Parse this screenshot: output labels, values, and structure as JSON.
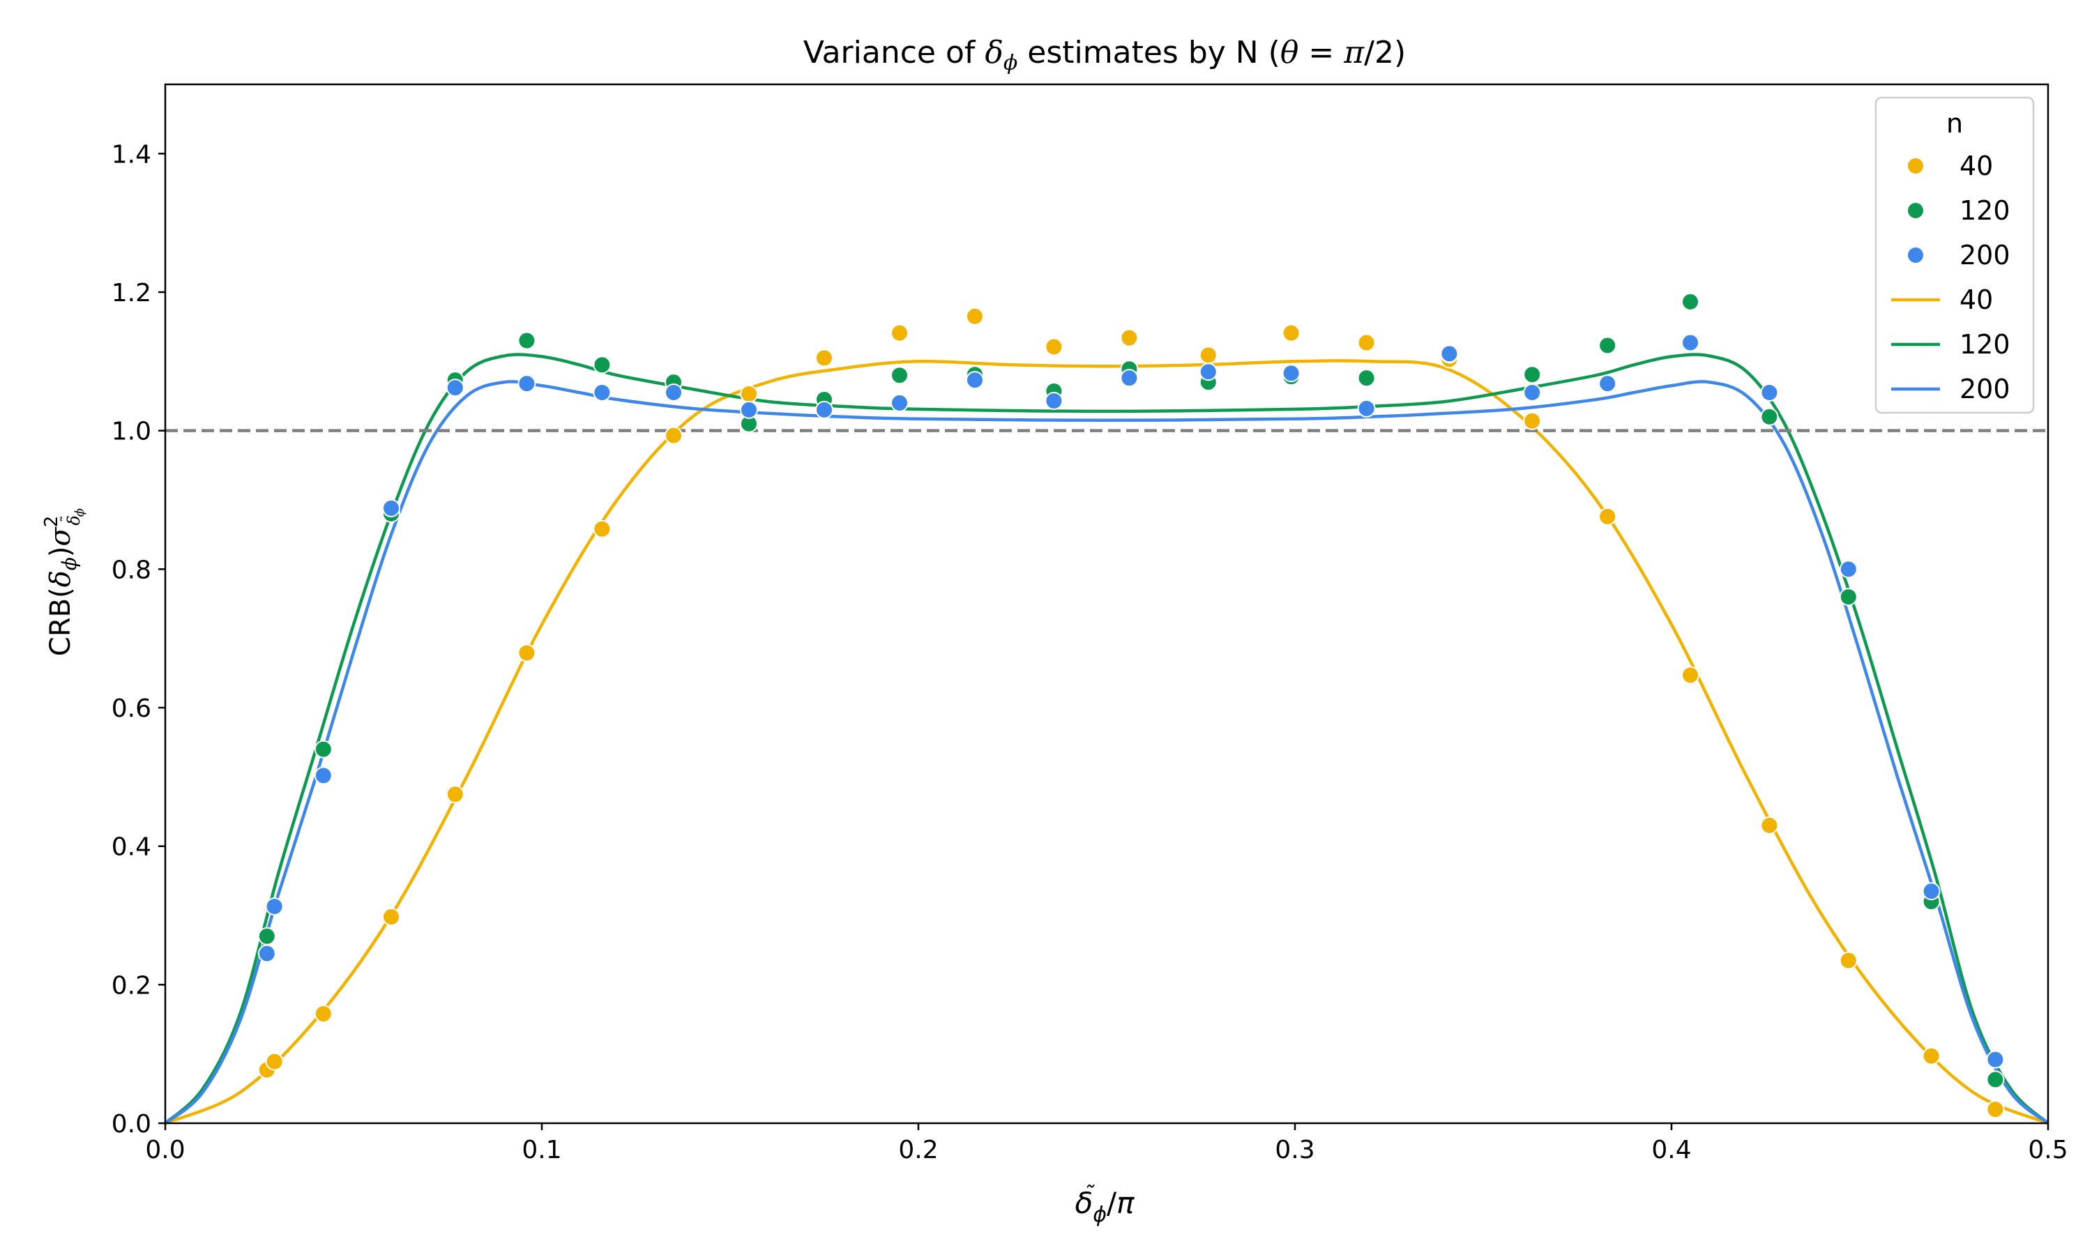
{
  "chart_data": {
    "type": "scatter",
    "title": "Variance of δ_ϕ estimates by N (θ = π/2)",
    "title_parts": {
      "pre": "Variance of ",
      "delta": "δ",
      "phi_sub": "ϕ",
      "mid": " estimates by N (",
      "theta": "θ",
      "eq": " = ",
      "pi": "π",
      "post": "/2)"
    },
    "xlabel_parts": {
      "delta": "δ",
      "tilde": "˜",
      "phi_sub": "ϕ",
      "div": "/",
      "pi": "π"
    },
    "ylabel_parts": {
      "crb": "CRB(",
      "delta": "δ",
      "phi_sub": "ϕ",
      "close": ")",
      "sigma": "σ",
      "sup": "2",
      "sub_delta": "δ",
      "sub_tilde": "˜",
      "sub_phi": "ϕ"
    },
    "xlim": [
      0.0,
      0.5
    ],
    "ylim": [
      0.0,
      1.5
    ],
    "xticks": [
      0.0,
      0.1,
      0.2,
      0.3,
      0.4,
      0.5
    ],
    "xtick_labels": [
      "0.0",
      "0.1",
      "0.2",
      "0.3",
      "0.4",
      "0.5"
    ],
    "yticks": [
      0.0,
      0.2,
      0.4,
      0.6,
      0.8,
      1.0,
      1.2,
      1.4
    ],
    "ytick_labels": [
      "0.0",
      "0.2",
      "0.4",
      "0.6",
      "0.8",
      "1.0",
      "1.2",
      "1.4"
    ],
    "grid": false,
    "reference_line": {
      "y": 1.0,
      "style": "dashed",
      "color": "#808080"
    },
    "legend": {
      "title": "n",
      "placement": "top-right",
      "entries": [
        {
          "label": "40",
          "kind": "marker",
          "color": "#f2b200"
        },
        {
          "label": "120",
          "kind": "marker",
          "color": "#0e9950"
        },
        {
          "label": "200",
          "kind": "marker",
          "color": "#3d86ea"
        },
        {
          "label": "40",
          "kind": "line",
          "color": "#f2b200"
        },
        {
          "label": "120",
          "kind": "line",
          "color": "#0e9950"
        },
        {
          "label": "200",
          "kind": "line",
          "color": "#3d86ea"
        }
      ]
    },
    "series": [
      {
        "name": "40",
        "color": "#f2b200",
        "points": [
          [
            0.027,
            0.077
          ],
          [
            0.029,
            0.089
          ],
          [
            0.042,
            0.158
          ],
          [
            0.06,
            0.298
          ],
          [
            0.077,
            0.475
          ],
          [
            0.096,
            0.679
          ],
          [
            0.116,
            0.858
          ],
          [
            0.135,
            0.993
          ],
          [
            0.155,
            1.053
          ],
          [
            0.175,
            1.105
          ],
          [
            0.195,
            1.141
          ],
          [
            0.215,
            1.165
          ],
          [
            0.236,
            1.121
          ],
          [
            0.256,
            1.134
          ],
          [
            0.277,
            1.109
          ],
          [
            0.299,
            1.141
          ],
          [
            0.319,
            1.127
          ],
          [
            0.341,
            1.103
          ],
          [
            0.363,
            1.014
          ],
          [
            0.383,
            0.876
          ],
          [
            0.405,
            0.647
          ],
          [
            0.426,
            0.43
          ],
          [
            0.447,
            0.235
          ],
          [
            0.469,
            0.097
          ],
          [
            0.486,
            0.02
          ]
        ],
        "curve": [
          [
            0.0,
            0.0
          ],
          [
            0.02,
            0.045
          ],
          [
            0.04,
            0.15
          ],
          [
            0.06,
            0.3
          ],
          [
            0.08,
            0.5
          ],
          [
            0.1,
            0.72
          ],
          [
            0.12,
            0.9
          ],
          [
            0.14,
            1.02
          ],
          [
            0.16,
            1.07
          ],
          [
            0.18,
            1.09
          ],
          [
            0.2,
            1.1
          ],
          [
            0.225,
            1.095
          ],
          [
            0.25,
            1.093
          ],
          [
            0.275,
            1.095
          ],
          [
            0.3,
            1.1
          ],
          [
            0.32,
            1.1
          ],
          [
            0.34,
            1.09
          ],
          [
            0.36,
            1.02
          ],
          [
            0.38,
            0.9
          ],
          [
            0.4,
            0.72
          ],
          [
            0.42,
            0.5
          ],
          [
            0.44,
            0.3
          ],
          [
            0.46,
            0.15
          ],
          [
            0.48,
            0.045
          ],
          [
            0.5,
            0.0
          ]
        ]
      },
      {
        "name": "120",
        "color": "#0e9950",
        "points": [
          [
            0.027,
            0.27
          ],
          [
            0.042,
            0.54
          ],
          [
            0.06,
            0.88
          ],
          [
            0.077,
            1.073
          ],
          [
            0.096,
            1.13
          ],
          [
            0.116,
            1.095
          ],
          [
            0.135,
            1.07
          ],
          [
            0.155,
            1.01
          ],
          [
            0.175,
            1.045
          ],
          [
            0.195,
            1.08
          ],
          [
            0.215,
            1.081
          ],
          [
            0.236,
            1.057
          ],
          [
            0.256,
            1.089
          ],
          [
            0.277,
            1.07
          ],
          [
            0.299,
            1.078
          ],
          [
            0.319,
            1.076
          ],
          [
            0.341,
            1.11
          ],
          [
            0.363,
            1.081
          ],
          [
            0.383,
            1.123
          ],
          [
            0.405,
            1.186
          ],
          [
            0.426,
            1.02
          ],
          [
            0.447,
            0.76
          ],
          [
            0.469,
            0.32
          ],
          [
            0.486,
            0.063
          ]
        ],
        "curve": [
          [
            0.0,
            0.0
          ],
          [
            0.01,
            0.05
          ],
          [
            0.02,
            0.16
          ],
          [
            0.03,
            0.36
          ],
          [
            0.04,
            0.54
          ],
          [
            0.05,
            0.72
          ],
          [
            0.06,
            0.88
          ],
          [
            0.07,
            1.01
          ],
          [
            0.08,
            1.085
          ],
          [
            0.09,
            1.108
          ],
          [
            0.1,
            1.107
          ],
          [
            0.11,
            1.095
          ],
          [
            0.12,
            1.08
          ],
          [
            0.14,
            1.06
          ],
          [
            0.16,
            1.042
          ],
          [
            0.18,
            1.035
          ],
          [
            0.2,
            1.031
          ],
          [
            0.25,
            1.028
          ],
          [
            0.3,
            1.031
          ],
          [
            0.32,
            1.035
          ],
          [
            0.34,
            1.042
          ],
          [
            0.36,
            1.06
          ],
          [
            0.38,
            1.08
          ],
          [
            0.39,
            1.095
          ],
          [
            0.4,
            1.107
          ],
          [
            0.41,
            1.108
          ],
          [
            0.42,
            1.085
          ],
          [
            0.43,
            1.01
          ],
          [
            0.44,
            0.88
          ],
          [
            0.45,
            0.72
          ],
          [
            0.46,
            0.54
          ],
          [
            0.47,
            0.36
          ],
          [
            0.48,
            0.16
          ],
          [
            0.49,
            0.05
          ],
          [
            0.5,
            0.0
          ]
        ]
      },
      {
        "name": "200",
        "color": "#3d86ea",
        "points": [
          [
            0.027,
            0.245
          ],
          [
            0.029,
            0.313
          ],
          [
            0.042,
            0.502
          ],
          [
            0.06,
            0.888
          ],
          [
            0.077,
            1.062
          ],
          [
            0.096,
            1.068
          ],
          [
            0.116,
            1.055
          ],
          [
            0.135,
            1.055
          ],
          [
            0.155,
            1.03
          ],
          [
            0.175,
            1.03
          ],
          [
            0.195,
            1.04
          ],
          [
            0.215,
            1.073
          ],
          [
            0.236,
            1.043
          ],
          [
            0.256,
            1.076
          ],
          [
            0.277,
            1.085
          ],
          [
            0.299,
            1.083
          ],
          [
            0.319,
            1.032
          ],
          [
            0.341,
            1.111
          ],
          [
            0.363,
            1.055
          ],
          [
            0.383,
            1.068
          ],
          [
            0.405,
            1.127
          ],
          [
            0.426,
            1.055
          ],
          [
            0.447,
            0.8
          ],
          [
            0.469,
            0.335
          ],
          [
            0.486,
            0.092
          ]
        ],
        "curve": [
          [
            0.0,
            0.0
          ],
          [
            0.01,
            0.045
          ],
          [
            0.02,
            0.15
          ],
          [
            0.03,
            0.33
          ],
          [
            0.04,
            0.5
          ],
          [
            0.05,
            0.68
          ],
          [
            0.06,
            0.85
          ],
          [
            0.07,
            0.98
          ],
          [
            0.08,
            1.05
          ],
          [
            0.09,
            1.07
          ],
          [
            0.1,
            1.065
          ],
          [
            0.11,
            1.055
          ],
          [
            0.12,
            1.045
          ],
          [
            0.14,
            1.032
          ],
          [
            0.16,
            1.025
          ],
          [
            0.18,
            1.02
          ],
          [
            0.2,
            1.017
          ],
          [
            0.25,
            1.015
          ],
          [
            0.3,
            1.017
          ],
          [
            0.32,
            1.02
          ],
          [
            0.34,
            1.025
          ],
          [
            0.36,
            1.032
          ],
          [
            0.38,
            1.045
          ],
          [
            0.39,
            1.055
          ],
          [
            0.4,
            1.065
          ],
          [
            0.41,
            1.07
          ],
          [
            0.42,
            1.05
          ],
          [
            0.43,
            0.98
          ],
          [
            0.44,
            0.85
          ],
          [
            0.45,
            0.68
          ],
          [
            0.46,
            0.5
          ],
          [
            0.47,
            0.33
          ],
          [
            0.48,
            0.15
          ],
          [
            0.49,
            0.045
          ],
          [
            0.5,
            0.0
          ]
        ]
      }
    ]
  }
}
